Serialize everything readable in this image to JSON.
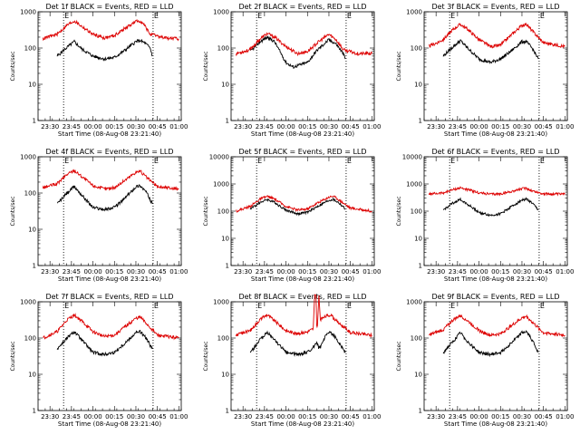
{
  "chart_data": [
    {
      "type": "line",
      "title": "Det 1f BLACK = Events, RED = LLD",
      "xlabel": "Start Time (08-Aug-08 23:21:40)",
      "ylabel": "Counts/sec",
      "yscale": "log",
      "ylim": [
        1,
        1000
      ],
      "yticks": [
        "1",
        "10",
        "100",
        "1000"
      ],
      "xticks": [
        "23:30",
        "23:45",
        "00:00",
        "00:15",
        "00:30",
        "00:45",
        "01:00"
      ],
      "markers": [
        {
          "x": "23:39:30",
          "label": "E"
        },
        {
          "x": "00:42:00",
          "label": "E"
        }
      ],
      "series": [
        {
          "color": "#000000",
          "x": [
            "23:35",
            "23:42",
            "23:47",
            "23:52",
            "00:00",
            "00:08",
            "00:15",
            "00:22",
            "00:30",
            "00:33",
            "00:36",
            "00:40",
            "00:41:30"
          ],
          "y": [
            60,
            105,
            150,
            95,
            60,
            50,
            55,
            85,
            150,
            160,
            140,
            100,
            60
          ]
        },
        {
          "color": "#dd0000",
          "x": [
            "23:25",
            "23:35",
            "23:42",
            "23:47",
            "23:52",
            "00:00",
            "00:08",
            "00:15",
            "00:22",
            "00:30",
            "00:33",
            "00:36",
            "00:40",
            "00:50",
            "01:00"
          ],
          "y": [
            180,
            240,
            430,
            560,
            400,
            240,
            190,
            220,
            340,
            540,
            560,
            420,
            240,
            190,
            180
          ]
        }
      ]
    },
    {
      "type": "line",
      "title": "Det 2f BLACK = Events, RED = LLD",
      "xlabel": "Start Time (08-Aug-08 23:21:40)",
      "ylabel": "Counts/sec",
      "yscale": "log",
      "ylim": [
        1,
        1000
      ],
      "yticks": [
        "1",
        "10",
        "100",
        "1000"
      ],
      "xticks": [
        "23:30",
        "23:45",
        "00:00",
        "00:15",
        "00:30",
        "00:45",
        "01:00"
      ],
      "markers": [
        {
          "x": "23:39:30",
          "label": "E"
        },
        {
          "x": "00:42:00",
          "label": "E"
        }
      ],
      "series": [
        {
          "color": "#000000",
          "x": [
            "23:35",
            "23:42",
            "23:47",
            "23:52",
            "00:00",
            "00:05",
            "00:15",
            "00:22",
            "00:30",
            "00:35",
            "00:40",
            "00:41:30"
          ],
          "y": [
            80,
            150,
            200,
            150,
            40,
            30,
            40,
            90,
            170,
            130,
            70,
            50
          ]
        },
        {
          "color": "#dd0000",
          "x": [
            "23:25",
            "23:35",
            "23:42",
            "23:47",
            "23:52",
            "00:00",
            "00:08",
            "00:15",
            "00:22",
            "00:30",
            "00:35",
            "00:40",
            "00:50",
            "01:00"
          ],
          "y": [
            70,
            90,
            180,
            250,
            200,
            110,
            70,
            80,
            140,
            240,
            170,
            90,
            70,
            70
          ]
        }
      ]
    },
    {
      "type": "line",
      "title": "Det 3f BLACK = Events, RED = LLD",
      "xlabel": "Start Time (08-Aug-08 23:21:40)",
      "ylabel": "Counts/sec",
      "yscale": "log",
      "ylim": [
        1,
        1000
      ],
      "yticks": [
        "1",
        "10",
        "100",
        "1000"
      ],
      "xticks": [
        "23:30",
        "23:45",
        "00:00",
        "00:15",
        "00:30",
        "00:45",
        "01:00"
      ],
      "markers": [
        {
          "x": "23:39:30",
          "label": "E"
        },
        {
          "x": "00:42:00",
          "label": "E"
        }
      ],
      "series": [
        {
          "color": "#000000",
          "x": [
            "23:35",
            "23:42",
            "23:47",
            "23:52",
            "00:00",
            "00:08",
            "00:15",
            "00:22",
            "00:30",
            "00:33",
            "00:37",
            "00:41:30"
          ],
          "y": [
            60,
            110,
            160,
            100,
            50,
            40,
            50,
            80,
            150,
            150,
            100,
            50
          ]
        },
        {
          "color": "#dd0000",
          "x": [
            "23:25",
            "23:35",
            "23:42",
            "23:47",
            "23:52",
            "00:00",
            "00:08",
            "00:15",
            "00:22",
            "00:30",
            "00:33",
            "00:37",
            "00:45",
            "01:00"
          ],
          "y": [
            110,
            170,
            330,
            450,
            330,
            170,
            110,
            120,
            220,
            420,
            460,
            300,
            140,
            110
          ]
        }
      ]
    },
    {
      "type": "line",
      "title": "Det 4f BLACK = Events, RED = LLD",
      "xlabel": "Start Time (08-Aug-08 23:21:40)",
      "ylabel": "Counts/sec",
      "yscale": "log",
      "ylim": [
        1,
        1000
      ],
      "yticks": [
        "1",
        "10",
        "100",
        "1000"
      ],
      "xticks": [
        "23:30",
        "23:45",
        "00:00",
        "00:15",
        "00:30",
        "00:45",
        "01:00"
      ],
      "markers": [
        {
          "x": "23:39:30",
          "label": "E"
        },
        {
          "x": "00:42:00",
          "label": "E"
        }
      ],
      "series": [
        {
          "color": "#000000",
          "x": [
            "23:35",
            "23:42",
            "23:47",
            "23:52",
            "00:00",
            "00:08",
            "00:15",
            "00:22",
            "00:30",
            "00:33",
            "00:37",
            "00:41:30"
          ],
          "y": [
            50,
            100,
            150,
            90,
            40,
            35,
            40,
            70,
            150,
            160,
            110,
            50
          ]
        },
        {
          "color": "#dd0000",
          "x": [
            "23:25",
            "23:35",
            "23:42",
            "23:47",
            "23:52",
            "00:00",
            "00:08",
            "00:15",
            "00:22",
            "00:30",
            "00:33",
            "00:37",
            "00:45",
            "01:00"
          ],
          "y": [
            140,
            180,
            330,
            420,
            290,
            160,
            130,
            140,
            220,
            380,
            400,
            280,
            150,
            130
          ]
        }
      ]
    },
    {
      "type": "line",
      "title": "Det 5f BLACK = Events, RED = LLD",
      "xlabel": "Start Time (08-Aug-08 23:21:40)",
      "ylabel": "Counts/sec",
      "yscale": "log",
      "ylim": [
        1,
        10000
      ],
      "yticks": [
        "1",
        "10",
        "100",
        "1000",
        "10000"
      ],
      "xticks": [
        "23:30",
        "23:45",
        "00:00",
        "00:15",
        "00:30",
        "00:45",
        "01:00"
      ],
      "markers": [
        {
          "x": "23:39:30",
          "label": "E"
        },
        {
          "x": "00:42:00",
          "label": "E"
        }
      ],
      "series": [
        {
          "color": "#000000",
          "x": [
            "23:35",
            "23:42",
            "23:47",
            "23:52",
            "00:00",
            "00:08",
            "00:15",
            "00:22",
            "00:30",
            "00:33",
            "00:37",
            "00:41:30"
          ],
          "y": [
            120,
            210,
            270,
            210,
            110,
            80,
            90,
            150,
            250,
            270,
            200,
            120
          ]
        },
        {
          "color": "#dd0000",
          "x": [
            "23:25",
            "23:35",
            "23:42",
            "23:47",
            "23:52",
            "00:00",
            "00:08",
            "00:15",
            "00:22",
            "00:30",
            "00:33",
            "00:37",
            "00:45",
            "01:00"
          ],
          "y": [
            100,
            150,
            280,
            350,
            280,
            150,
            110,
            120,
            200,
            330,
            360,
            260,
            130,
            100
          ]
        }
      ]
    },
    {
      "type": "line",
      "title": "Det 6f BLACK = Events, RED = LLD",
      "xlabel": "Start Time (08-Aug-08 23:21:40)",
      "ylabel": "Counts/sec",
      "yscale": "log",
      "ylim": [
        1,
        10000
      ],
      "yticks": [
        "1",
        "10",
        "100",
        "1000",
        "10000"
      ],
      "xticks": [
        "23:30",
        "23:45",
        "00:00",
        "00:15",
        "00:30",
        "00:45",
        "01:00"
      ],
      "markers": [
        {
          "x": "23:39:30",
          "label": "E"
        },
        {
          "x": "00:42:00",
          "label": "E"
        }
      ],
      "series": [
        {
          "color": "#000000",
          "x": [
            "23:35",
            "23:42",
            "23:47",
            "23:52",
            "00:00",
            "00:08",
            "00:15",
            "00:22",
            "00:30",
            "00:33",
            "00:37",
            "00:41:30"
          ],
          "y": [
            110,
            200,
            270,
            180,
            90,
            70,
            80,
            140,
            260,
            280,
            200,
            110
          ]
        },
        {
          "color": "#dd0000",
          "x": [
            "23:25",
            "23:35",
            "23:42",
            "23:47",
            "23:52",
            "00:00",
            "00:08",
            "00:15",
            "00:22",
            "00:30",
            "00:33",
            "00:37",
            "00:45",
            "01:00"
          ],
          "y": [
            420,
            470,
            620,
            720,
            620,
            470,
            420,
            430,
            520,
            660,
            700,
            560,
            430,
            420
          ]
        }
      ]
    },
    {
      "type": "line",
      "title": "Det 7f BLACK = Events, RED = LLD",
      "xlabel": "Start Time (08-Aug-08 23:21:40)",
      "ylabel": "Counts/sec",
      "yscale": "log",
      "ylim": [
        1,
        1000
      ],
      "yticks": [
        "1",
        "10",
        "100",
        "1000"
      ],
      "xticks": [
        "23:30",
        "23:45",
        "00:00",
        "00:15",
        "00:30",
        "00:45",
        "01:00"
      ],
      "markers": [
        {
          "x": "23:39:30",
          "label": "E"
        },
        {
          "x": "00:42:00",
          "label": "E"
        }
      ],
      "series": [
        {
          "color": "#000000",
          "x": [
            "23:35",
            "23:42",
            "23:47",
            "23:52",
            "00:00",
            "00:08",
            "00:15",
            "00:22",
            "00:30",
            "00:33",
            "00:37",
            "00:41:30"
          ],
          "y": [
            50,
            100,
            150,
            90,
            40,
            35,
            40,
            70,
            140,
            150,
            100,
            50
          ]
        },
        {
          "color": "#dd0000",
          "x": [
            "23:25",
            "23:35",
            "23:42",
            "23:47",
            "23:52",
            "00:00",
            "00:08",
            "00:15",
            "00:22",
            "00:30",
            "00:33",
            "00:37",
            "00:45",
            "01:00"
          ],
          "y": [
            100,
            150,
            320,
            430,
            300,
            150,
            110,
            120,
            200,
            350,
            380,
            260,
            120,
            100
          ]
        }
      ]
    },
    {
      "type": "line",
      "title": "Det 8f BLACK = Events, RED = LLD",
      "xlabel": "Start Time (08-Aug-08 23:21:40)",
      "ylabel": "Counts/sec",
      "yscale": "log",
      "ylim": [
        1,
        1000
      ],
      "yticks": [
        "1",
        "10",
        "100",
        "1000"
      ],
      "xticks": [
        "23:30",
        "23:45",
        "00:00",
        "00:15",
        "00:30",
        "00:45",
        "01:00"
      ],
      "markers": [
        {
          "x": "23:39:30",
          "label": "E"
        },
        {
          "x": "00:42:00",
          "label": "E"
        }
      ],
      "series": [
        {
          "color": "#000000",
          "x": [
            "23:35",
            "23:42",
            "23:47",
            "23:52",
            "00:00",
            "00:08",
            "00:15",
            "00:21:30",
            "00:23:30",
            "00:28",
            "00:31",
            "00:35",
            "00:41:30"
          ],
          "y": [
            40,
            90,
            140,
            90,
            40,
            35,
            40,
            70,
            50,
            120,
            140,
            100,
            40
          ]
        },
        {
          "color": "#dd0000",
          "x": [
            "23:25",
            "23:35",
            "23:42",
            "23:47",
            "23:52",
            "00:00",
            "00:08",
            "00:15",
            "00:19",
            "00:20",
            "00:21",
            "00:21:30",
            "00:22",
            "00:23",
            "00:24",
            "00:28",
            "00:31",
            "00:35",
            "00:45",
            "01:00"
          ],
          "y": [
            120,
            160,
            330,
            440,
            300,
            160,
            130,
            150,
            180,
            1500,
            1500,
            200,
            220,
            1500,
            320,
            400,
            440,
            300,
            140,
            120
          ]
        }
      ]
    },
    {
      "type": "line",
      "title": "Det 9f BLACK = Events, RED = LLD",
      "xlabel": "Start Time (08-Aug-08 23:21:40)",
      "ylabel": "Counts/sec",
      "yscale": "log",
      "ylim": [
        1,
        1000
      ],
      "yticks": [
        "1",
        "10",
        "100",
        "1000"
      ],
      "xticks": [
        "23:30",
        "23:45",
        "00:00",
        "00:15",
        "00:30",
        "00:45",
        "01:00"
      ],
      "markers": [
        {
          "x": "23:39:30",
          "label": "E"
        },
        {
          "x": "00:42:00",
          "label": "E"
        }
      ],
      "series": [
        {
          "color": "#000000",
          "x": [
            "23:35",
            "23:42",
            "23:47",
            "23:52",
            "00:00",
            "00:08",
            "00:15",
            "00:22",
            "00:30",
            "00:33",
            "00:37",
            "00:41:30"
          ],
          "y": [
            40,
            80,
            140,
            80,
            40,
            35,
            40,
            70,
            140,
            150,
            90,
            40
          ]
        },
        {
          "color": "#dd0000",
          "x": [
            "23:25",
            "23:35",
            "23:42",
            "23:47",
            "23:52",
            "00:00",
            "00:08",
            "00:15",
            "00:22",
            "00:30",
            "00:33",
            "00:37",
            "00:45",
            "01:00"
          ],
          "y": [
            120,
            170,
            320,
            420,
            300,
            160,
            120,
            130,
            210,
            360,
            400,
            280,
            140,
            120
          ]
        }
      ]
    }
  ]
}
